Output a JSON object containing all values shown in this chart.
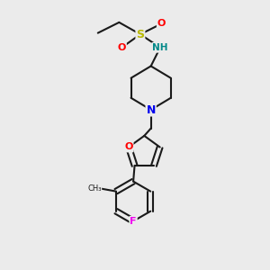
{
  "bg_color": "#ebebeb",
  "bond_color": "#1a1a1a",
  "atom_colors": {
    "S": "#b8b800",
    "O": "#ff0000",
    "N": "#0000ee",
    "NH": "#008888",
    "F": "#ee00ee",
    "C": "#1a1a1a"
  }
}
